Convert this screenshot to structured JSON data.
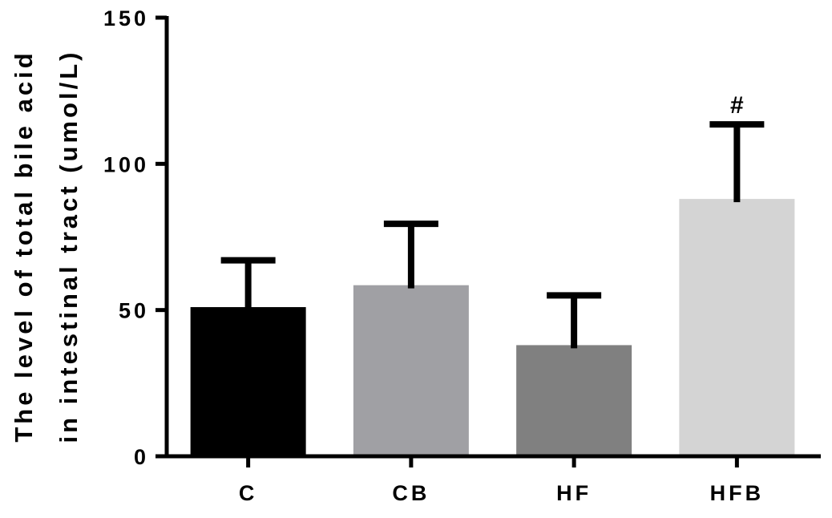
{
  "chart_data": {
    "type": "bar",
    "categories": [
      "C",
      "CB",
      "HF",
      "HFB"
    ],
    "values": [
      51,
      58.5,
      38,
      88
    ],
    "error_upper": [
      67,
      79.5,
      55,
      113.5
    ],
    "annotations": [
      "",
      "",
      "",
      "#"
    ],
    "bar_colors": [
      "#000000",
      "#a0a0a4",
      "#808080",
      "#d4d4d4"
    ],
    "ylabel_lines": [
      "The level of total bile acid",
      "in intestinal tract (umol/L)"
    ],
    "xlabel": "",
    "title": "",
    "ylim": [
      0,
      150
    ],
    "yticks": [
      0,
      50,
      100,
      150
    ],
    "grid": false,
    "legend": "none"
  }
}
